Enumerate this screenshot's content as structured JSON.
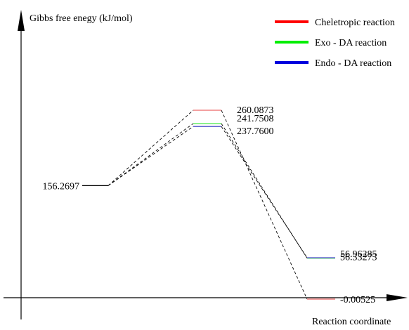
{
  "chart_data": {
    "type": "line",
    "ylabel": "Gibbs free enegy (kJ/mol)",
    "xlabel": "Reaction coordinate",
    "y_range": [
      -20,
      285
    ],
    "stages": [
      "reactant",
      "transition_state",
      "product"
    ],
    "reactant": {
      "value": 156.2697,
      "label": "156.2697",
      "color": "#000000"
    },
    "series": [
      {
        "name": "Cheletropic reaction",
        "color": "#ff0000",
        "line_color": "#f08080",
        "ts": 260.0873,
        "ts_label": "260.0873",
        "product": -0.00525,
        "product_label": "-0.00525"
      },
      {
        "name": "Exo - DA reaction",
        "color": "#00ee00",
        "line_color": "#66ee66",
        "ts": 241.7508,
        "ts_label": "241.7508",
        "product": 56.33273,
        "product_label": "56.33273"
      },
      {
        "name": "Endo - DA reaction",
        "color": "#0000dd",
        "line_color": "#5555cc",
        "ts": 237.76,
        "ts_label": "237.7600",
        "product": 56.96285,
        "product_label": "56.96285"
      }
    ],
    "legend_position": "top-right",
    "grid": false
  }
}
